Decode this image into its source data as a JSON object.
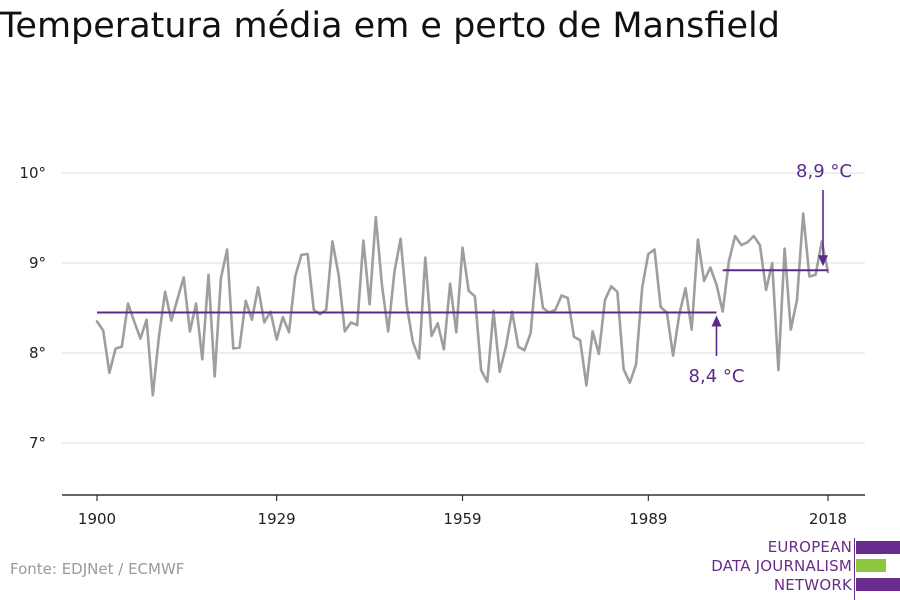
{
  "title": "Temperatura média em e perto de Mansfield",
  "source": "Fonte: EDJNet / ECMWF",
  "logo": {
    "lines": [
      "EUROPEAN",
      "DATA JOURNALISM",
      "NETWORK"
    ],
    "colors": {
      "purple": "#6a2c8c",
      "green": "#8dc63f"
    }
  },
  "colors": {
    "series": "#9e9e9e",
    "average": "#5c2b8a",
    "grid": "#dddddd",
    "axis": "#333333",
    "tick_text": "#222222"
  },
  "chart_data": {
    "type": "line",
    "ylim": [
      6.45,
      10.55
    ],
    "xlim": [
      1900,
      2018
    ],
    "yticks": [
      7,
      8,
      9,
      10
    ],
    "ytick_labels": [
      "7°",
      "8°",
      "9°",
      "10°"
    ],
    "xticks": [
      1900,
      1929,
      1959,
      1989,
      2018
    ],
    "xtick_labels": [
      "1900",
      "1929",
      "1959",
      "1989",
      "2018"
    ],
    "grid": true,
    "series": [
      {
        "x": [
          1900,
          1901,
          1902,
          1903,
          1904,
          1905,
          1906,
          1907,
          1908,
          1909,
          1910,
          1911,
          1912,
          1913,
          1914,
          1915,
          1916,
          1917,
          1918,
          1919,
          1920,
          1921,
          1922,
          1923,
          1924,
          1925,
          1926,
          1927,
          1928,
          1929,
          1930,
          1931,
          1932,
          1933,
          1934,
          1935,
          1936,
          1937,
          1938,
          1939,
          1940,
          1941,
          1942,
          1943,
          1944,
          1945,
          1946,
          1947,
          1948,
          1949,
          1950,
          1951,
          1952,
          1953,
          1954,
          1955,
          1956,
          1957,
          1958,
          1959,
          1960,
          1961,
          1962,
          1963,
          1964,
          1965,
          1966,
          1967,
          1968,
          1969,
          1970,
          1971,
          1972,
          1973,
          1974,
          1975,
          1976,
          1977,
          1978,
          1979,
          1980,
          1981,
          1982,
          1983,
          1984,
          1985,
          1986,
          1987,
          1988,
          1989,
          1990,
          1991,
          1992,
          1993,
          1994,
          1995,
          1996,
          1997,
          1998,
          1999,
          2000,
          2001,
          2002,
          2003,
          2004,
          2005,
          2006,
          2007,
          2008,
          2009,
          2010,
          2011,
          2012,
          2013,
          2014,
          2015,
          2016,
          2017,
          2018
        ],
        "values": [
          8.35,
          8.25,
          7.78,
          8.05,
          8.07,
          8.55,
          8.35,
          8.16,
          8.37,
          7.53,
          8.18,
          8.68,
          8.36,
          8.6,
          8.84,
          8.24,
          8.55,
          7.93,
          8.87,
          7.74,
          8.83,
          9.15,
          8.05,
          8.06,
          8.58,
          8.37,
          8.73,
          8.34,
          8.46,
          8.15,
          8.4,
          8.23,
          8.85,
          9.09,
          9.1,
          8.48,
          8.43,
          8.48,
          9.24,
          8.87,
          8.24,
          8.34,
          8.31,
          9.25,
          8.54,
          9.51,
          8.75,
          8.24,
          8.9,
          9.27,
          8.53,
          8.12,
          7.94,
          9.06,
          8.19,
          8.33,
          8.04,
          8.77,
          8.23,
          9.17,
          8.69,
          8.63,
          7.81,
          7.68,
          8.47,
          7.79,
          8.07,
          8.46,
          8.07,
          8.03,
          8.22,
          8.99,
          8.5,
          8.45,
          8.48,
          8.64,
          8.61,
          8.18,
          8.14,
          7.64,
          8.24,
          7.99,
          8.59,
          8.74,
          8.68,
          7.82,
          7.67,
          7.87,
          8.73,
          9.1,
          9.15,
          8.51,
          8.45,
          7.97,
          8.43,
          8.72,
          8.26,
          9.26,
          8.8,
          8.95,
          8.76,
          8.46,
          9.02,
          9.3,
          9.2,
          9.23,
          9.3,
          9.2,
          8.7,
          9.0,
          7.81,
          9.16,
          8.26,
          8.59,
          9.55,
          8.85,
          8.87,
          9.24,
          8.9
        ]
      }
    ],
    "averages": [
      {
        "x_start": 1900,
        "x_end": 2000,
        "value": 8.45,
        "label": "8,4 °C"
      },
      {
        "x_start": 2001,
        "x_end": 2018,
        "value": 8.92,
        "label": "8,9 °C"
      }
    ]
  }
}
